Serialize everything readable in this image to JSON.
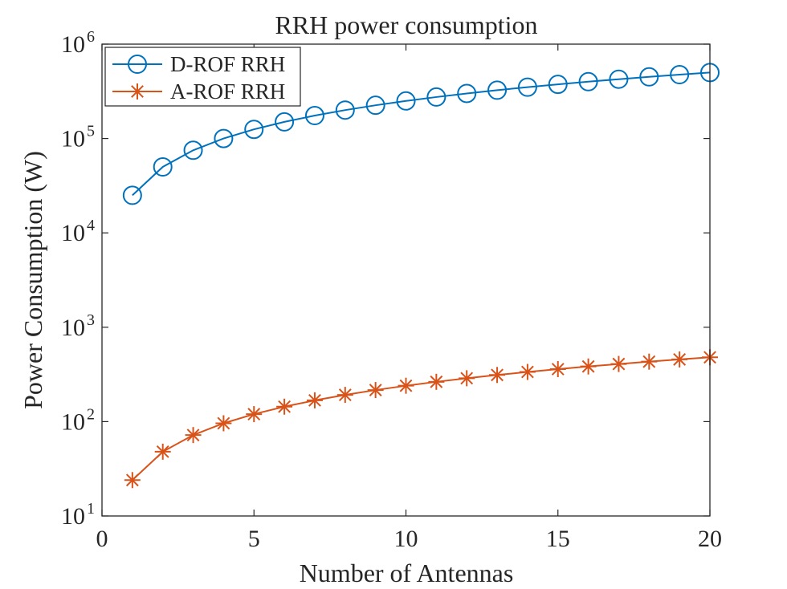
{
  "chart_data": {
    "type": "line",
    "title": "RRH power consumption",
    "xlabel": "Number of Antennas",
    "ylabel": "Power Consumption (W)",
    "xlim": [
      0,
      20
    ],
    "ylim": [
      10,
      1000000
    ],
    "yscale": "log",
    "grid": false,
    "legend_position": "top-left",
    "xticks": [
      {
        "value": 0,
        "label": "0"
      },
      {
        "value": 5,
        "label": "5"
      },
      {
        "value": 10,
        "label": "10"
      },
      {
        "value": 15,
        "label": "15"
      },
      {
        "value": 20,
        "label": "20"
      }
    ],
    "yticks": [
      {
        "value": 10,
        "base": "10",
        "exp": "1"
      },
      {
        "value": 100,
        "base": "10",
        "exp": "2"
      },
      {
        "value": 1000,
        "base": "10",
        "exp": "3"
      },
      {
        "value": 10000,
        "base": "10",
        "exp": "4"
      },
      {
        "value": 100000,
        "base": "10",
        "exp": "5"
      },
      {
        "value": 1000000,
        "base": "10",
        "exp": "6"
      }
    ],
    "x": [
      1,
      2,
      3,
      4,
      5,
      6,
      7,
      8,
      9,
      10,
      11,
      12,
      13,
      14,
      15,
      16,
      17,
      18,
      19,
      20
    ],
    "series": [
      {
        "name": "D-ROF RRH",
        "color": "#0072BD",
        "marker": "circle",
        "values": [
          25000,
          50000,
          75000,
          100000,
          125000,
          150000,
          175000,
          200000,
          225000,
          250000,
          275000,
          300000,
          325000,
          350000,
          375000,
          400000,
          425000,
          450000,
          475000,
          500000
        ]
      },
      {
        "name": "A-ROF RRH",
        "color": "#D95319",
        "marker": "asterisk",
        "values": [
          24,
          48,
          72,
          96,
          120,
          144,
          168,
          192,
          216,
          240,
          264,
          288,
          312,
          336,
          360,
          384,
          408,
          432,
          456,
          480
        ]
      }
    ]
  }
}
